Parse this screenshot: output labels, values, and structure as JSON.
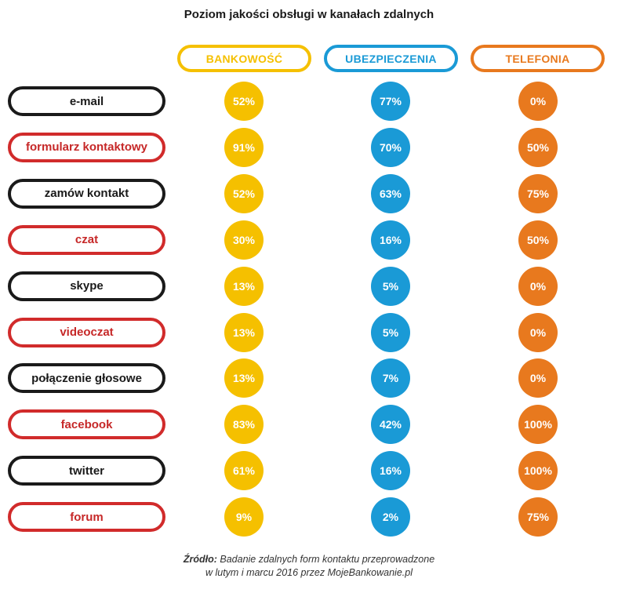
{
  "title": "Poziom jakości obsługi w kanałach zdalnych",
  "colors": {
    "bankowosc": "#f5c000",
    "ubezpieczenia": "#1a9ad6",
    "telefonia": "#e8791e",
    "label_dark": "#1a1a1a",
    "label_red": "#d12b2b"
  },
  "chart_data": {
    "type": "table",
    "title": "Poziom jakości obsługi w kanałach zdalnych",
    "columns": [
      "BANKOWOŚĆ",
      "UBEZPIECZENIA",
      "TELEFONIA"
    ],
    "rows": [
      {
        "label": "e-mail",
        "style": "dark",
        "values": [
          "52%",
          "77%",
          "0%"
        ]
      },
      {
        "label": "formularz kontaktowy",
        "style": "red",
        "values": [
          "91%",
          "70%",
          "50%"
        ]
      },
      {
        "label": "zamów kontakt",
        "style": "dark",
        "values": [
          "52%",
          "63%",
          "75%"
        ]
      },
      {
        "label": "czat",
        "style": "red",
        "values": [
          "30%",
          "16%",
          "50%"
        ]
      },
      {
        "label": "skype",
        "style": "dark",
        "values": [
          "13%",
          "5%",
          "0%"
        ]
      },
      {
        "label": "videoczat",
        "style": "red",
        "values": [
          "13%",
          "5%",
          "0%"
        ]
      },
      {
        "label": "połączenie głosowe",
        "style": "dark",
        "values": [
          "13%",
          "7%",
          "0%"
        ]
      },
      {
        "label": "facebook",
        "style": "red",
        "values": [
          "83%",
          "42%",
          "100%"
        ]
      },
      {
        "label": "twitter",
        "style": "dark",
        "values": [
          "61%",
          "16%",
          "100%"
        ]
      },
      {
        "label": "forum",
        "style": "red",
        "values": [
          "9%",
          "2%",
          "75%"
        ]
      }
    ]
  },
  "source": {
    "prefix": "Źródło:",
    "line1": "Badanie zdalnych form kontaktu przeprowadzone",
    "line2": "w lutym i marcu 2016 przez MojeBankowanie.pl"
  }
}
